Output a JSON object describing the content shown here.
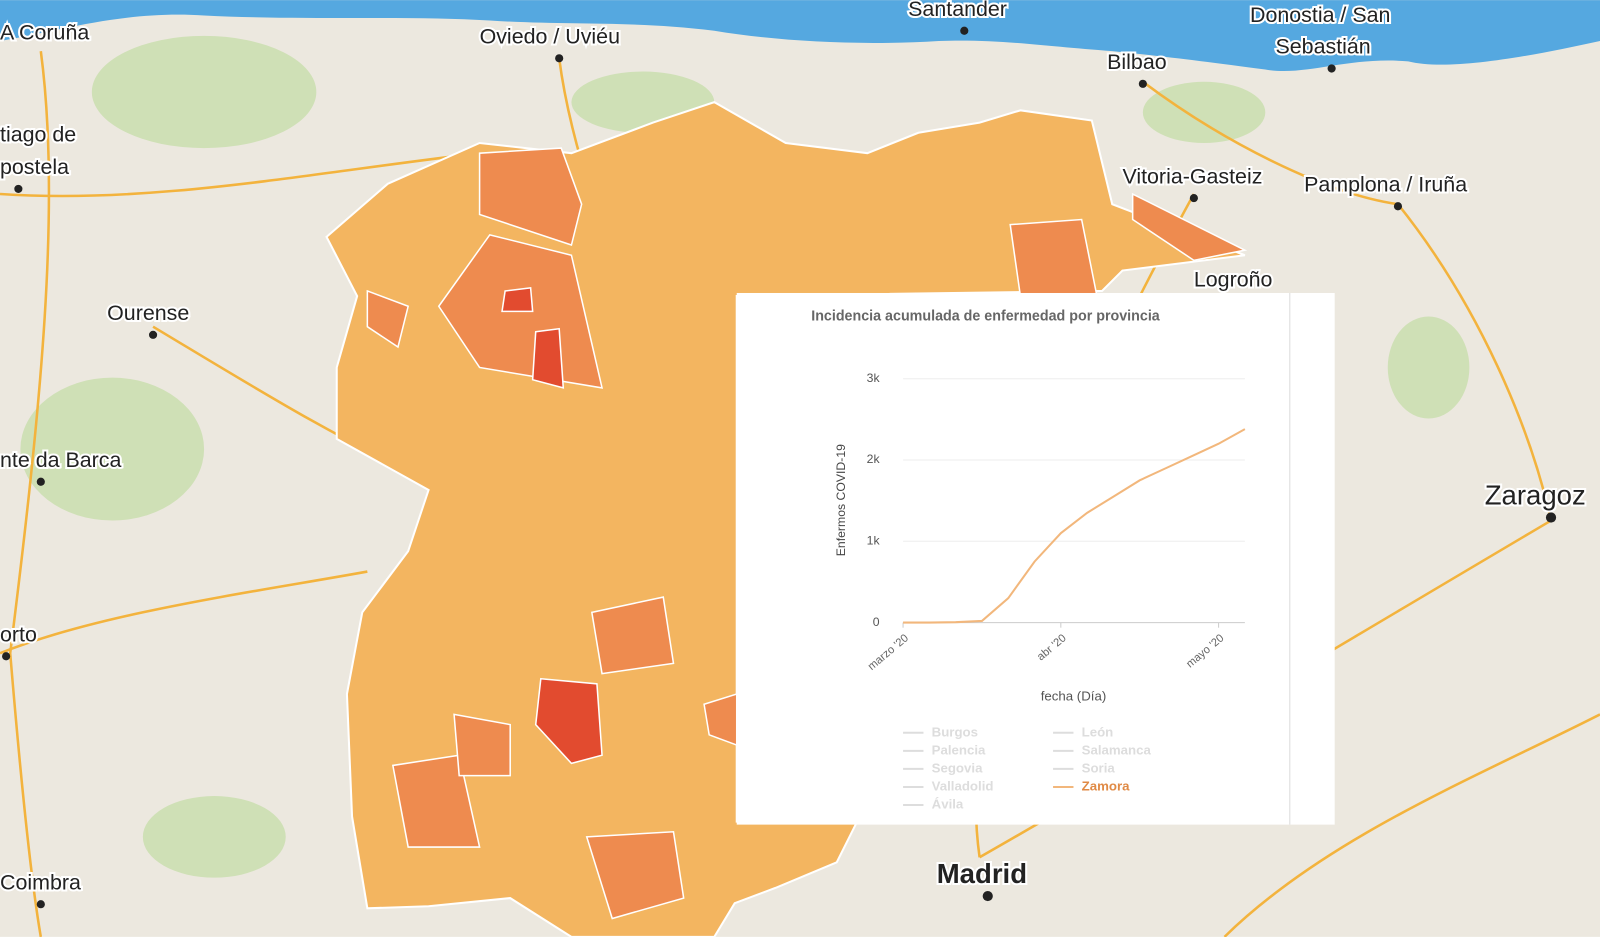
{
  "map": {
    "labels": [
      "A Coruña",
      "Oviedo / Uviéu",
      "Santander",
      "Bilbao",
      "Donostia / San",
      "Sebastián",
      "Vitoria-Gasteiz",
      "Pamplona / Iruña",
      "Logroño",
      "tiago de",
      "postela",
      "Ourense",
      "nte da Barca",
      "orto",
      "Coimbra",
      "Zaragoz",
      "Madrid"
    ]
  },
  "chart_data": {
    "type": "line",
    "title": "Incidencia acumulada de enfermedad por provincia",
    "y_label": "Enfermos COVID-19",
    "x_label": "fecha (Día)",
    "categories": [
      "marzo '20",
      null,
      null,
      null,
      null,
      null,
      "abr '20",
      null,
      null,
      null,
      null,
      null,
      "mayo '20",
      null
    ],
    "ylim": [
      0,
      3000
    ],
    "yticks": [
      0,
      {
        "value": 1000,
        "label": "1k"
      },
      {
        "value": 2000,
        "label": "2k"
      },
      {
        "value": 3000,
        "label": "3k"
      }
    ],
    "grid": true,
    "series": [
      {
        "name": "Burgos",
        "color": "#dddddd",
        "values": [
          null,
          null,
          null,
          null,
          null,
          null,
          null,
          null,
          null,
          null,
          null,
          null,
          null,
          null
        ]
      },
      {
        "name": "León",
        "color": "#dddddd",
        "values": [
          null,
          null,
          null,
          null,
          null,
          null,
          null,
          null,
          null,
          null,
          null,
          null,
          null,
          null
        ]
      },
      {
        "name": "Palencia",
        "color": "#dddddd",
        "values": [
          null,
          null,
          null,
          null,
          null,
          null,
          null,
          null,
          null,
          null,
          null,
          null,
          null,
          null
        ]
      },
      {
        "name": "Salamanca",
        "color": "#dddddd",
        "values": [
          null,
          null,
          null,
          null,
          null,
          null,
          null,
          null,
          null,
          null,
          null,
          null,
          null,
          null
        ]
      },
      {
        "name": "Segovia",
        "color": "#dddddd",
        "values": [
          null,
          null,
          null,
          null,
          null,
          null,
          null,
          null,
          null,
          null,
          null,
          null,
          null,
          null
        ]
      },
      {
        "name": "Soria",
        "color": "#dddddd",
        "values": [
          null,
          null,
          null,
          null,
          null,
          null,
          null,
          null,
          null,
          null,
          null,
          null,
          null,
          null
        ]
      },
      {
        "name": "Valladolid",
        "color": "#dddddd",
        "values": [
          null,
          null,
          null,
          null,
          null,
          null,
          null,
          null,
          null,
          null,
          null,
          null,
          null,
          null
        ]
      },
      {
        "name": "Zamora",
        "color": "#f2b77c",
        "values": [
          0,
          0,
          5,
          20,
          300,
          750,
          1100,
          1350,
          1550,
          1750,
          1900,
          2050,
          2200,
          2380
        ]
      },
      {
        "name": "Ávila",
        "color": "#dddddd",
        "values": [
          null,
          null,
          null,
          null,
          null,
          null,
          null,
          null,
          null,
          null,
          null,
          null,
          null,
          null
        ]
      }
    ]
  }
}
